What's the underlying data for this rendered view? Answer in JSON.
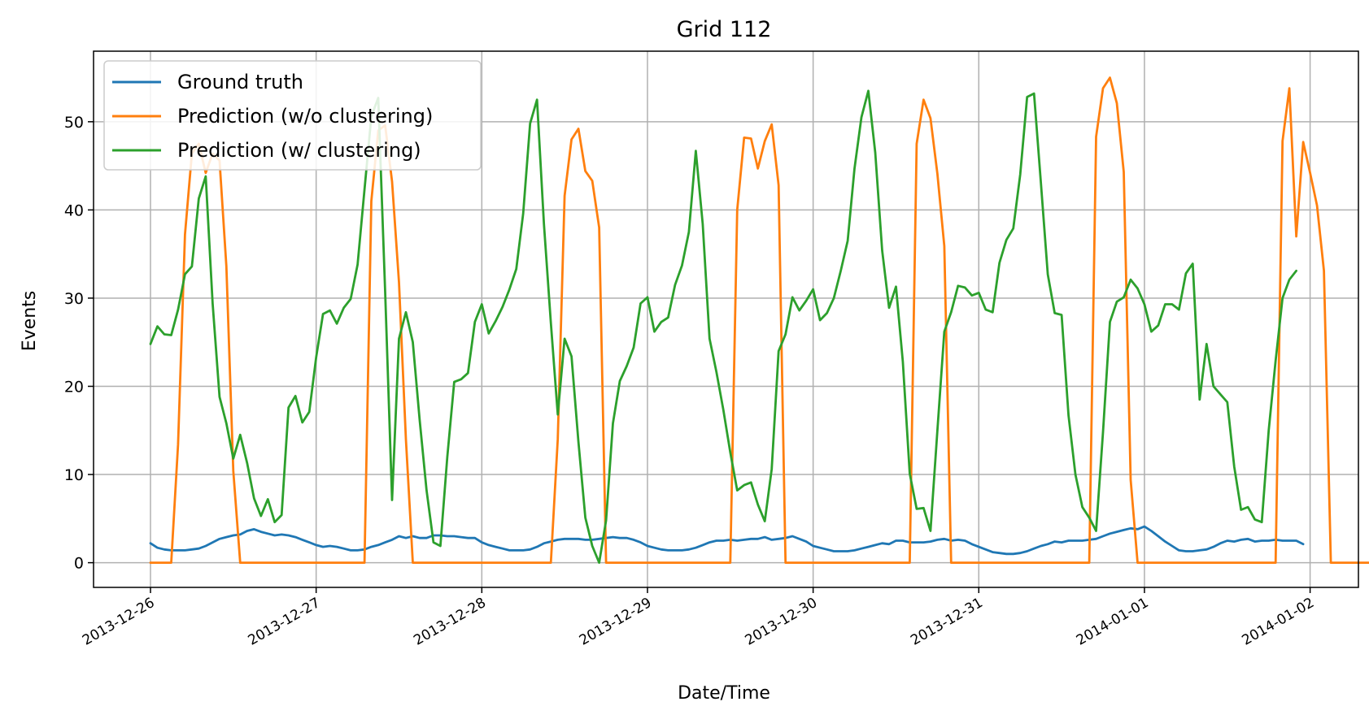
{
  "chart_data": {
    "type": "line",
    "title": "Grid 112",
    "xlabel": "Date/Time",
    "ylabel": "Events",
    "xlim": [
      "2013-12-25 15:45",
      "2014-01-02 07:00"
    ],
    "ylim": [
      -2.8,
      58
    ],
    "yticks": [
      0,
      10,
      20,
      30,
      40,
      50
    ],
    "xticks": [
      "2013-12-26",
      "2013-12-27",
      "2013-12-28",
      "2013-12-29",
      "2013-12-30",
      "2013-12-31",
      "2014-01-01",
      "2014-01-02"
    ],
    "x_start": "2013-12-26 00:00",
    "x_step_hours": 1,
    "grid": true,
    "legend_position": "top-left",
    "series": [
      {
        "name": "Ground truth",
        "color": "#1f77b4",
        "values": [
          2.2,
          1.7,
          1.5,
          1.4,
          1.4,
          1.4,
          1.5,
          1.6,
          1.9,
          2.3,
          2.7,
          2.9,
          3.1,
          3.2,
          3.6,
          3.8,
          3.5,
          3.3,
          3.1,
          3.2,
          3.1,
          2.9,
          2.6,
          2.3,
          2.0,
          1.8,
          1.9,
          1.8,
          1.6,
          1.4,
          1.4,
          1.5,
          1.8,
          2.0,
          2.3,
          2.6,
          3.0,
          2.8,
          3.0,
          2.8,
          2.8,
          3.1,
          3.1,
          3.0,
          3.0,
          2.9,
          2.8,
          2.8,
          2.3,
          2.0,
          1.8,
          1.6,
          1.4,
          1.4,
          1.4,
          1.5,
          1.8,
          2.2,
          2.4,
          2.6,
          2.7,
          2.7,
          2.7,
          2.6,
          2.6,
          2.7,
          2.8,
          2.9,
          2.8,
          2.8,
          2.6,
          2.3,
          1.9,
          1.7,
          1.5,
          1.4,
          1.4,
          1.4,
          1.5,
          1.7,
          2.0,
          2.3,
          2.5,
          2.5,
          2.6,
          2.5,
          2.6,
          2.7,
          2.7,
          2.9,
          2.6,
          2.7,
          2.8,
          3.0,
          2.7,
          2.4,
          1.9,
          1.7,
          1.5,
          1.3,
          1.3,
          1.3,
          1.4,
          1.6,
          1.8,
          2.0,
          2.2,
          2.1,
          2.5,
          2.5,
          2.3,
          2.3,
          2.3,
          2.4,
          2.6,
          2.7,
          2.5,
          2.6,
          2.5,
          2.1,
          1.8,
          1.5,
          1.2,
          1.1,
          1.0,
          1.0,
          1.1,
          1.3,
          1.6,
          1.9,
          2.1,
          2.4,
          2.3,
          2.5,
          2.5,
          2.5,
          2.6,
          2.7,
          3.0,
          3.3,
          3.5,
          3.7,
          3.9,
          3.8,
          4.1,
          3.6,
          3.0,
          2.4,
          1.9,
          1.4,
          1.3,
          1.3,
          1.4,
          1.5,
          1.8,
          2.2,
          2.5,
          2.4,
          2.6,
          2.7,
          2.4,
          2.5,
          2.5,
          2.6,
          2.5,
          2.5,
          2.5,
          2.1
        ]
      },
      {
        "name": "Prediction (w/o clustering)",
        "color": "#ff7f0e",
        "values": [
          0,
          0,
          0,
          0,
          13.4,
          37.2,
          46.4,
          47.5,
          44.2,
          46.4,
          45.6,
          33.6,
          10.4,
          0,
          0,
          0,
          0,
          0,
          0,
          0,
          0,
          0,
          0,
          0,
          0,
          0,
          0,
          0,
          0,
          0,
          0,
          0,
          41,
          49,
          49.6,
          43.2,
          31.8,
          14,
          0,
          0,
          0,
          0,
          0,
          0,
          0,
          0,
          0,
          0,
          0,
          0,
          0,
          0,
          0,
          0,
          0,
          0,
          0,
          0,
          0,
          14,
          41.6,
          48,
          49.2,
          44.4,
          43.3,
          38,
          0,
          0,
          0,
          0,
          0,
          0,
          0,
          0,
          0,
          0,
          0,
          0,
          0,
          0,
          0,
          0,
          0,
          0,
          0,
          40,
          48.2,
          48.1,
          44.7,
          47.8,
          49.7,
          42.8,
          0,
          0,
          0,
          0,
          0,
          0,
          0,
          0,
          0,
          0,
          0,
          0,
          0,
          0,
          0,
          0,
          0,
          0,
          0,
          47.5,
          52.5,
          50.4,
          44.1,
          35.9,
          0,
          0,
          0,
          0,
          0,
          0,
          0,
          0,
          0,
          0,
          0,
          0,
          0,
          0,
          0,
          0,
          0,
          0,
          0,
          0,
          0,
          48.3,
          53.8,
          55,
          52.1,
          44.3,
          9.4,
          0,
          0,
          0,
          0,
          0,
          0,
          0,
          0,
          0,
          0,
          0,
          0,
          0,
          0,
          0,
          0,
          0,
          0,
          0,
          0,
          0,
          47.8,
          53.8,
          37,
          47.7,
          44.2,
          40.5,
          33.1,
          0,
          0,
          0,
          0,
          0,
          0,
          0,
          0,
          0,
          0,
          0,
          0,
          0,
          0
        ]
      },
      {
        "name": "Prediction (w/ clustering)",
        "color": "#2ca02c",
        "values": [
          24.8,
          26.8,
          25.9,
          25.8,
          28.7,
          32.7,
          33.6,
          41.3,
          43.8,
          29.4,
          18.8,
          15.8,
          11.8,
          14.5,
          11.3,
          7.3,
          5.3,
          7.2,
          4.6,
          5.4,
          17.6,
          18.9,
          15.9,
          17.1,
          23.3,
          28.2,
          28.6,
          27.1,
          28.9,
          29.9,
          33.8,
          42.3,
          50.6,
          52.7,
          30.7,
          7.1,
          25.4,
          28.4,
          25,
          16.2,
          8.2,
          2.3,
          1.9,
          12,
          20.5,
          20.8,
          21.5,
          27.3,
          29.3,
          26,
          27.4,
          29,
          31,
          33.3,
          39.6,
          49.8,
          52.5,
          38.4,
          27.2,
          16.8,
          25.4,
          23.4,
          13.7,
          5.1,
          1.9,
          0,
          4.8,
          15.8,
          20.6,
          22.3,
          24.4,
          29.4,
          30.1,
          26.2,
          27.3,
          27.8,
          31.5,
          33.7,
          37.5,
          46.7,
          38.4,
          25.4,
          21.6,
          17.3,
          12.5,
          8.2,
          8.8,
          9.1,
          6.6,
          4.7,
          10.6,
          24,
          25.9,
          30.1,
          28.6,
          29.7,
          31,
          27.5,
          28.3,
          30,
          33.1,
          36.5,
          44.7,
          50.5,
          53.5,
          46.5,
          35.4,
          28.9,
          31.3,
          22.8,
          10.1,
          6.1,
          6.2,
          3.6,
          15,
          26.2,
          28.4,
          31.4,
          31.2,
          30.3,
          30.6,
          28.7,
          28.4,
          34,
          36.6,
          37.9,
          44,
          52.8,
          53.2,
          43,
          32.7,
          28.3,
          28.1,
          16.7,
          10,
          6.3,
          5.1,
          3.6,
          14.8,
          27.3,
          29.6,
          30.1,
          32.1,
          31.1,
          29.3,
          26.2,
          26.9,
          29.3,
          29.3,
          28.7,
          32.8,
          33.9,
          18.5,
          24.8,
          20,
          19.1,
          18.2,
          10.9,
          6,
          6.3,
          4.9,
          4.6,
          15,
          22.9,
          30,
          32.1,
          33.1
        ]
      }
    ]
  }
}
